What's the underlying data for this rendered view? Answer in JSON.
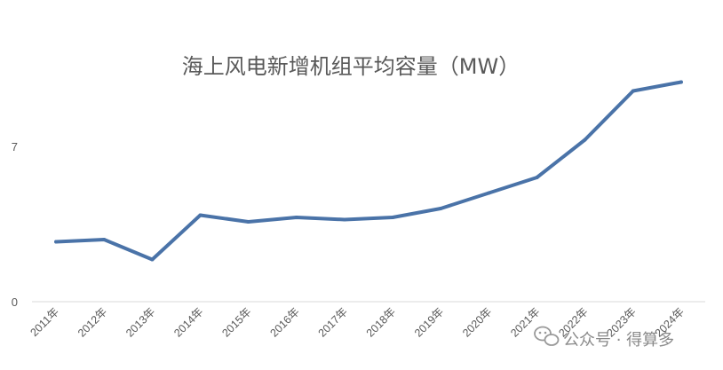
{
  "chart_data": {
    "type": "line",
    "title": "海上风电新增机组平均容量（MW）",
    "xlabel": "",
    "ylabel": "",
    "ylim": [
      0,
      10
    ],
    "yticks": [
      "0",
      "7"
    ],
    "yticks_values": [
      0,
      7
    ],
    "categories": [
      "2011年",
      "2012年",
      "2013年",
      "2014年",
      "2015年",
      "2016年",
      "2017年",
      "2018年",
      "2019年",
      "2020年",
      "2021年",
      "2022年",
      "2023年",
      "2024年"
    ],
    "series": [
      {
        "values": [
          2.7,
          2.8,
          1.9,
          3.9,
          3.6,
          3.8,
          3.7,
          3.8,
          4.2,
          4.9,
          5.6,
          7.3,
          9.5,
          9.9
        ],
        "color": "#4A73A8"
      }
    ],
    "grid": false,
    "legend": "none"
  },
  "watermark": {
    "text": "公众号 · 得算多",
    "icon": "wechat-icon"
  }
}
